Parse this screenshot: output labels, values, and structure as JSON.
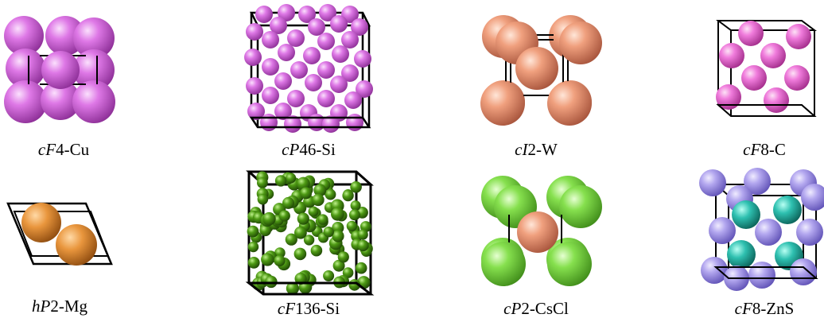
{
  "colors": {
    "violet": "#de78e6",
    "pink": "#f07cdc",
    "salmon": "#f0a07e",
    "orange": "#e9963d",
    "green": "#4e9a14",
    "lightgreen": "#86e04e",
    "lavender": "#b3a7ef",
    "teal": "#2ec0b0"
  },
  "structures": [
    {
      "symbol": "cF",
      "rest": "4-Cu"
    },
    {
      "symbol": "cP",
      "rest": "46-Si"
    },
    {
      "symbol": "cI",
      "rest": "2-W"
    },
    {
      "symbol": "cF",
      "rest": "8-C"
    },
    {
      "symbol": "hP",
      "rest": "2-Mg"
    },
    {
      "symbol": "cF",
      "rest": "136-Si"
    },
    {
      "symbol": "cP",
      "rest": "2-CsCl"
    },
    {
      "symbol": "cF",
      "rest": "8-ZnS"
    }
  ]
}
